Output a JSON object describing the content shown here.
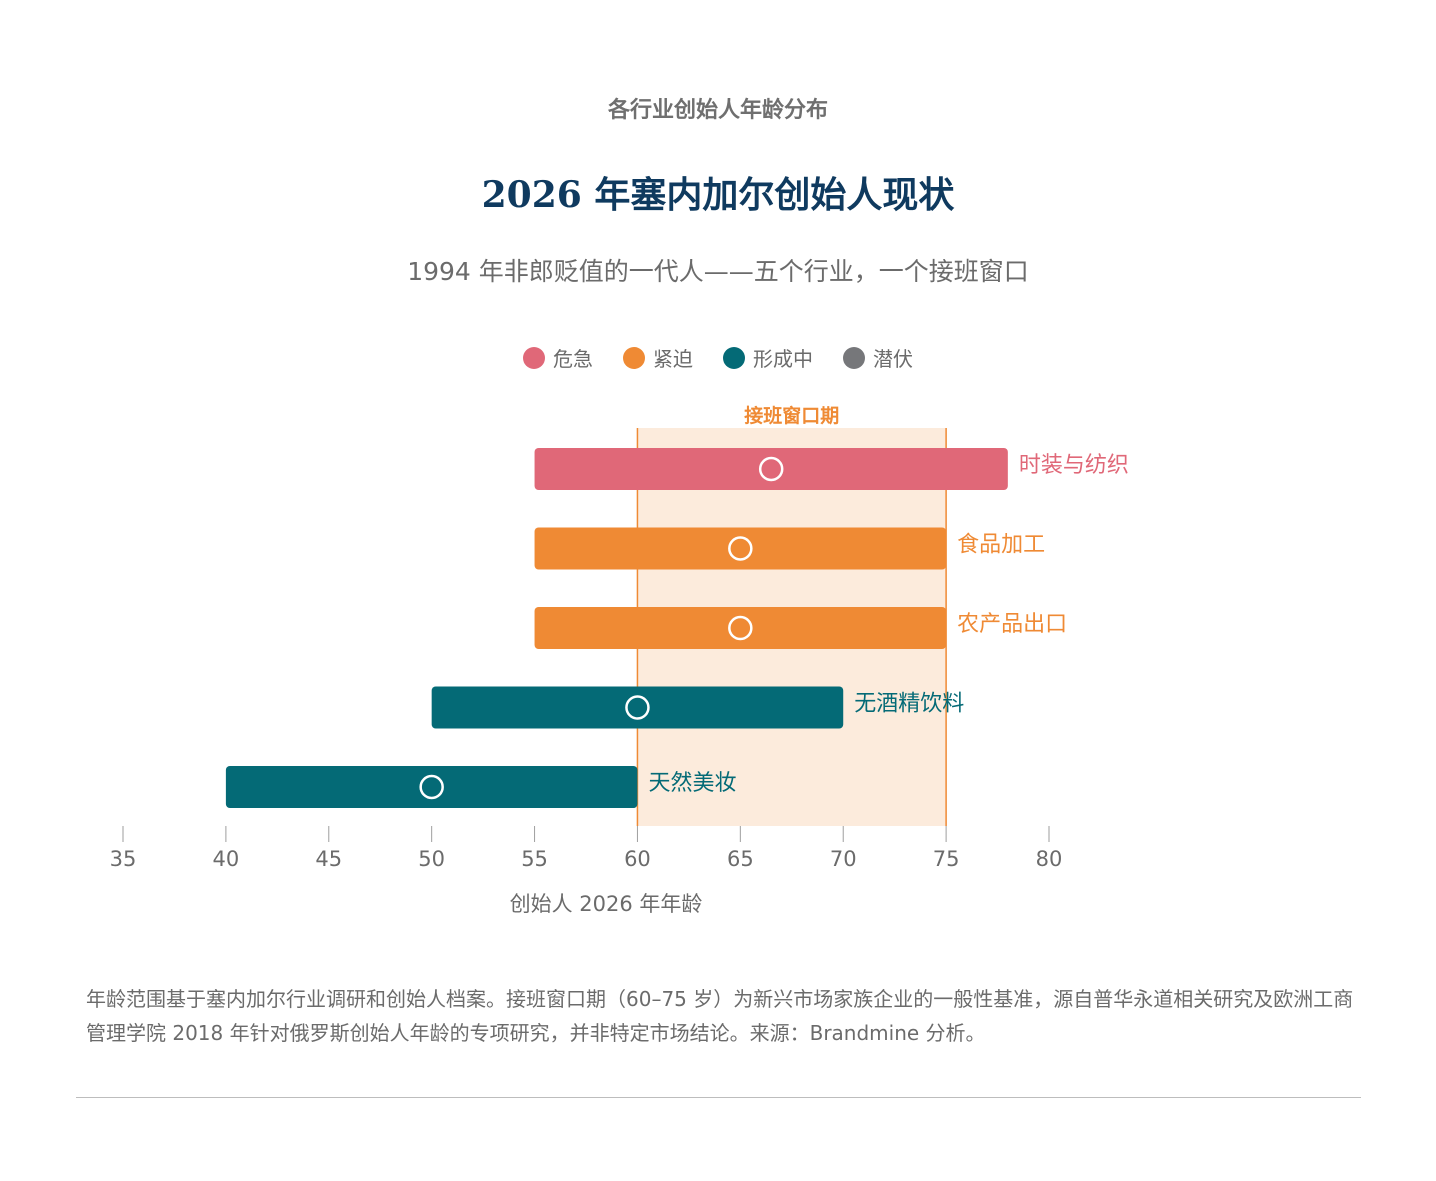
{
  "header": {
    "kicker": "各行业创始人年龄分布",
    "title": "2026 年塞内加尔创始人现状",
    "subtitle": "1994 年非郎贬值的一代人——五个行业，一个接班窗口"
  },
  "legend": [
    {
      "label": "危急",
      "color": "#e06878"
    },
    {
      "label": "紧迫",
      "color": "#ef8a34"
    },
    {
      "label": "形成中",
      "color": "#046a76"
    },
    {
      "label": "潜伏",
      "color": "#76777a"
    }
  ],
  "chart_data": {
    "type": "range-bar",
    "succession_window": {
      "label": "接班窗口期",
      "from": 60,
      "to": 75
    },
    "xlim": [
      35,
      80
    ],
    "ticks": [
      35,
      40,
      45,
      50,
      55,
      60,
      65,
      70,
      75,
      80
    ],
    "xlabel": "创始人 2026 年年龄",
    "series": [
      {
        "name": "时装与纺织",
        "status": "危急",
        "start": 55,
        "end": 78,
        "median": 66.5
      },
      {
        "name": "食品加工",
        "status": "紧迫",
        "start": 55,
        "end": 75,
        "median": 65
      },
      {
        "name": "农产品出口",
        "status": "紧迫",
        "start": 55,
        "end": 75,
        "median": 65
      },
      {
        "name": "无酒精饮料",
        "status": "形成中",
        "start": 50,
        "end": 70,
        "median": 60
      },
      {
        "name": "天然美妆",
        "status": "形成中",
        "start": 40,
        "end": 60,
        "median": 50
      }
    ],
    "window_color": "#fcebdc",
    "window_line_color": "#ef8a34"
  },
  "footnote": "年龄范围基于塞内加尔行业调研和创始人档案。接班窗口期（60–75 岁）为新兴市场家族企业的一般性基准，源自普华永道相关研究及欧洲工商管理学院 2018 年针对俄罗斯创始人年龄的专项研究，并非特定市场结论。来源：Brandmine 分析。"
}
